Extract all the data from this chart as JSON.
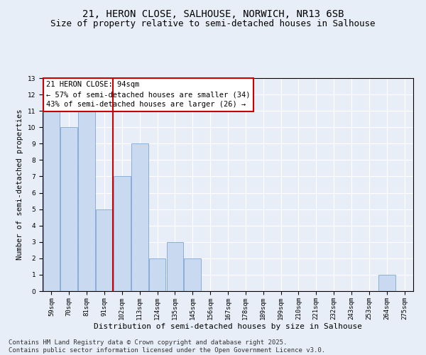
{
  "title1": "21, HERON CLOSE, SALHOUSE, NORWICH, NR13 6SB",
  "title2": "Size of property relative to semi-detached houses in Salhouse",
  "xlabel": "Distribution of semi-detached houses by size in Salhouse",
  "ylabel": "Number of semi-detached properties",
  "categories": [
    "59sqm",
    "70sqm",
    "81sqm",
    "91sqm",
    "102sqm",
    "113sqm",
    "124sqm",
    "135sqm",
    "145sqm",
    "156sqm",
    "167sqm",
    "178sqm",
    "189sqm",
    "199sqm",
    "210sqm",
    "221sqm",
    "232sqm",
    "243sqm",
    "253sqm",
    "264sqm",
    "275sqm"
  ],
  "values": [
    11,
    10,
    11,
    5,
    7,
    9,
    2,
    3,
    2,
    0,
    0,
    0,
    0,
    0,
    0,
    0,
    0,
    0,
    0,
    1,
    0
  ],
  "bar_color": "#c9d9f0",
  "bar_edge_color": "#7da6d4",
  "subject_label": "21 HERON CLOSE: 94sqm",
  "annotation_smaller": "← 57% of semi-detached houses are smaller (34)",
  "annotation_larger": "43% of semi-detached houses are larger (26) →",
  "vline_color": "#cc0000",
  "ylim": [
    0,
    13
  ],
  "yticks": [
    0,
    1,
    2,
    3,
    4,
    5,
    6,
    7,
    8,
    9,
    10,
    11,
    12,
    13
  ],
  "footer1": "Contains HM Land Registry data © Crown copyright and database right 2025.",
  "footer2": "Contains public sector information licensed under the Open Government Licence v3.0.",
  "bg_color": "#e8eef8",
  "plot_bg_color": "#e8eef8",
  "grid_color": "#ffffff",
  "title1_fontsize": 10,
  "title2_fontsize": 9,
  "ylabel_fontsize": 7.5,
  "xlabel_fontsize": 8,
  "tick_fontsize": 6.5,
  "annotation_fontsize": 7.5,
  "footer_fontsize": 6.5
}
